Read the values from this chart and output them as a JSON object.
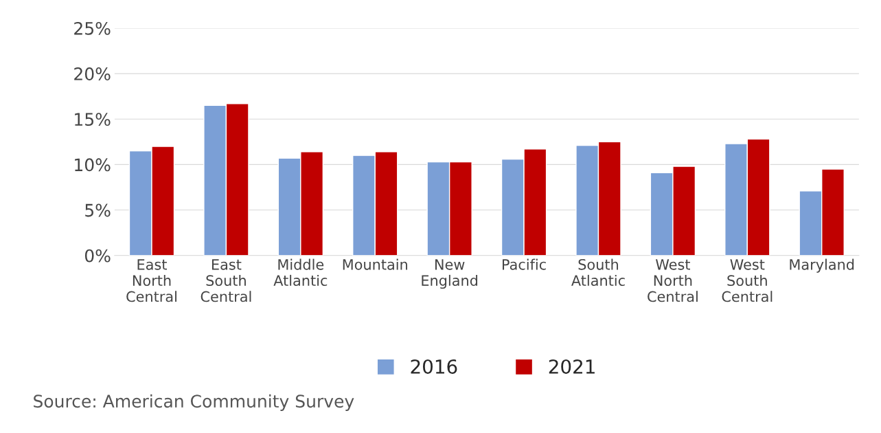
{
  "chart_data": {
    "type": "bar",
    "categories": [
      "East\nNorth\nCentral",
      "East\nSouth\nCentral",
      "Middle\nAtlantic",
      "Mountain",
      "New\nEngland",
      "Pacific",
      "South\nAtlantic",
      "West\nNorth\nCentral",
      "West\nSouth\nCentral",
      "Maryland"
    ],
    "series": [
      {
        "name": "2016",
        "color": "#7b9fd6",
        "values": [
          11.5,
          16.5,
          10.7,
          11.0,
          10.3,
          10.6,
          12.1,
          9.1,
          12.3,
          7.1
        ]
      },
      {
        "name": "2021",
        "color": "#c00000",
        "values": [
          12.0,
          16.7,
          11.4,
          11.4,
          10.3,
          11.7,
          12.5,
          9.8,
          12.8,
          9.5
        ]
      }
    ],
    "ylim": [
      0,
      25
    ],
    "yticks": [
      {
        "value": 0,
        "label": "0%"
      },
      {
        "value": 5,
        "label": "5%"
      },
      {
        "value": 10,
        "label": "10%"
      },
      {
        "value": 15,
        "label": "15%"
      },
      {
        "value": 20,
        "label": "20%"
      },
      {
        "value": 25,
        "label": "25%"
      }
    ],
    "grid": "y",
    "legend": "bottom",
    "annotations": [
      "Source: American Community Survey"
    ]
  }
}
